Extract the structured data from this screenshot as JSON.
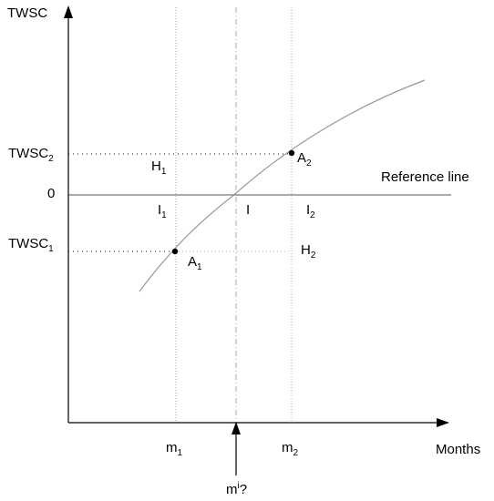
{
  "axes": {
    "y_label": "TWSC",
    "x_label": "Months",
    "zero_label": "0"
  },
  "reference_line_label": "Reference line",
  "y_levels": {
    "upper": {
      "main": "TWSC",
      "sub": "2"
    },
    "lower": {
      "main": "TWSC",
      "sub": "1"
    }
  },
  "x_marks": {
    "m1": {
      "main": "m",
      "sub": "1"
    },
    "m2": {
      "main": "m",
      "sub": "2"
    },
    "mi": {
      "main": "m",
      "sub": "i",
      "suffix": "?"
    }
  },
  "points": {
    "A1": {
      "main": "A",
      "sub": "1"
    },
    "A2": {
      "main": "A",
      "sub": "2"
    },
    "H1": {
      "main": "H",
      "sub": "1"
    },
    "H2": {
      "main": "H",
      "sub": "2"
    },
    "I1": {
      "main": "I",
      "sub": "1"
    },
    "I": {
      "main": "I"
    },
    "I2": {
      "main": "I",
      "sub": "2"
    }
  },
  "colors": {
    "axis": "#000000",
    "guide": "#999999",
    "curve": "#999999"
  }
}
